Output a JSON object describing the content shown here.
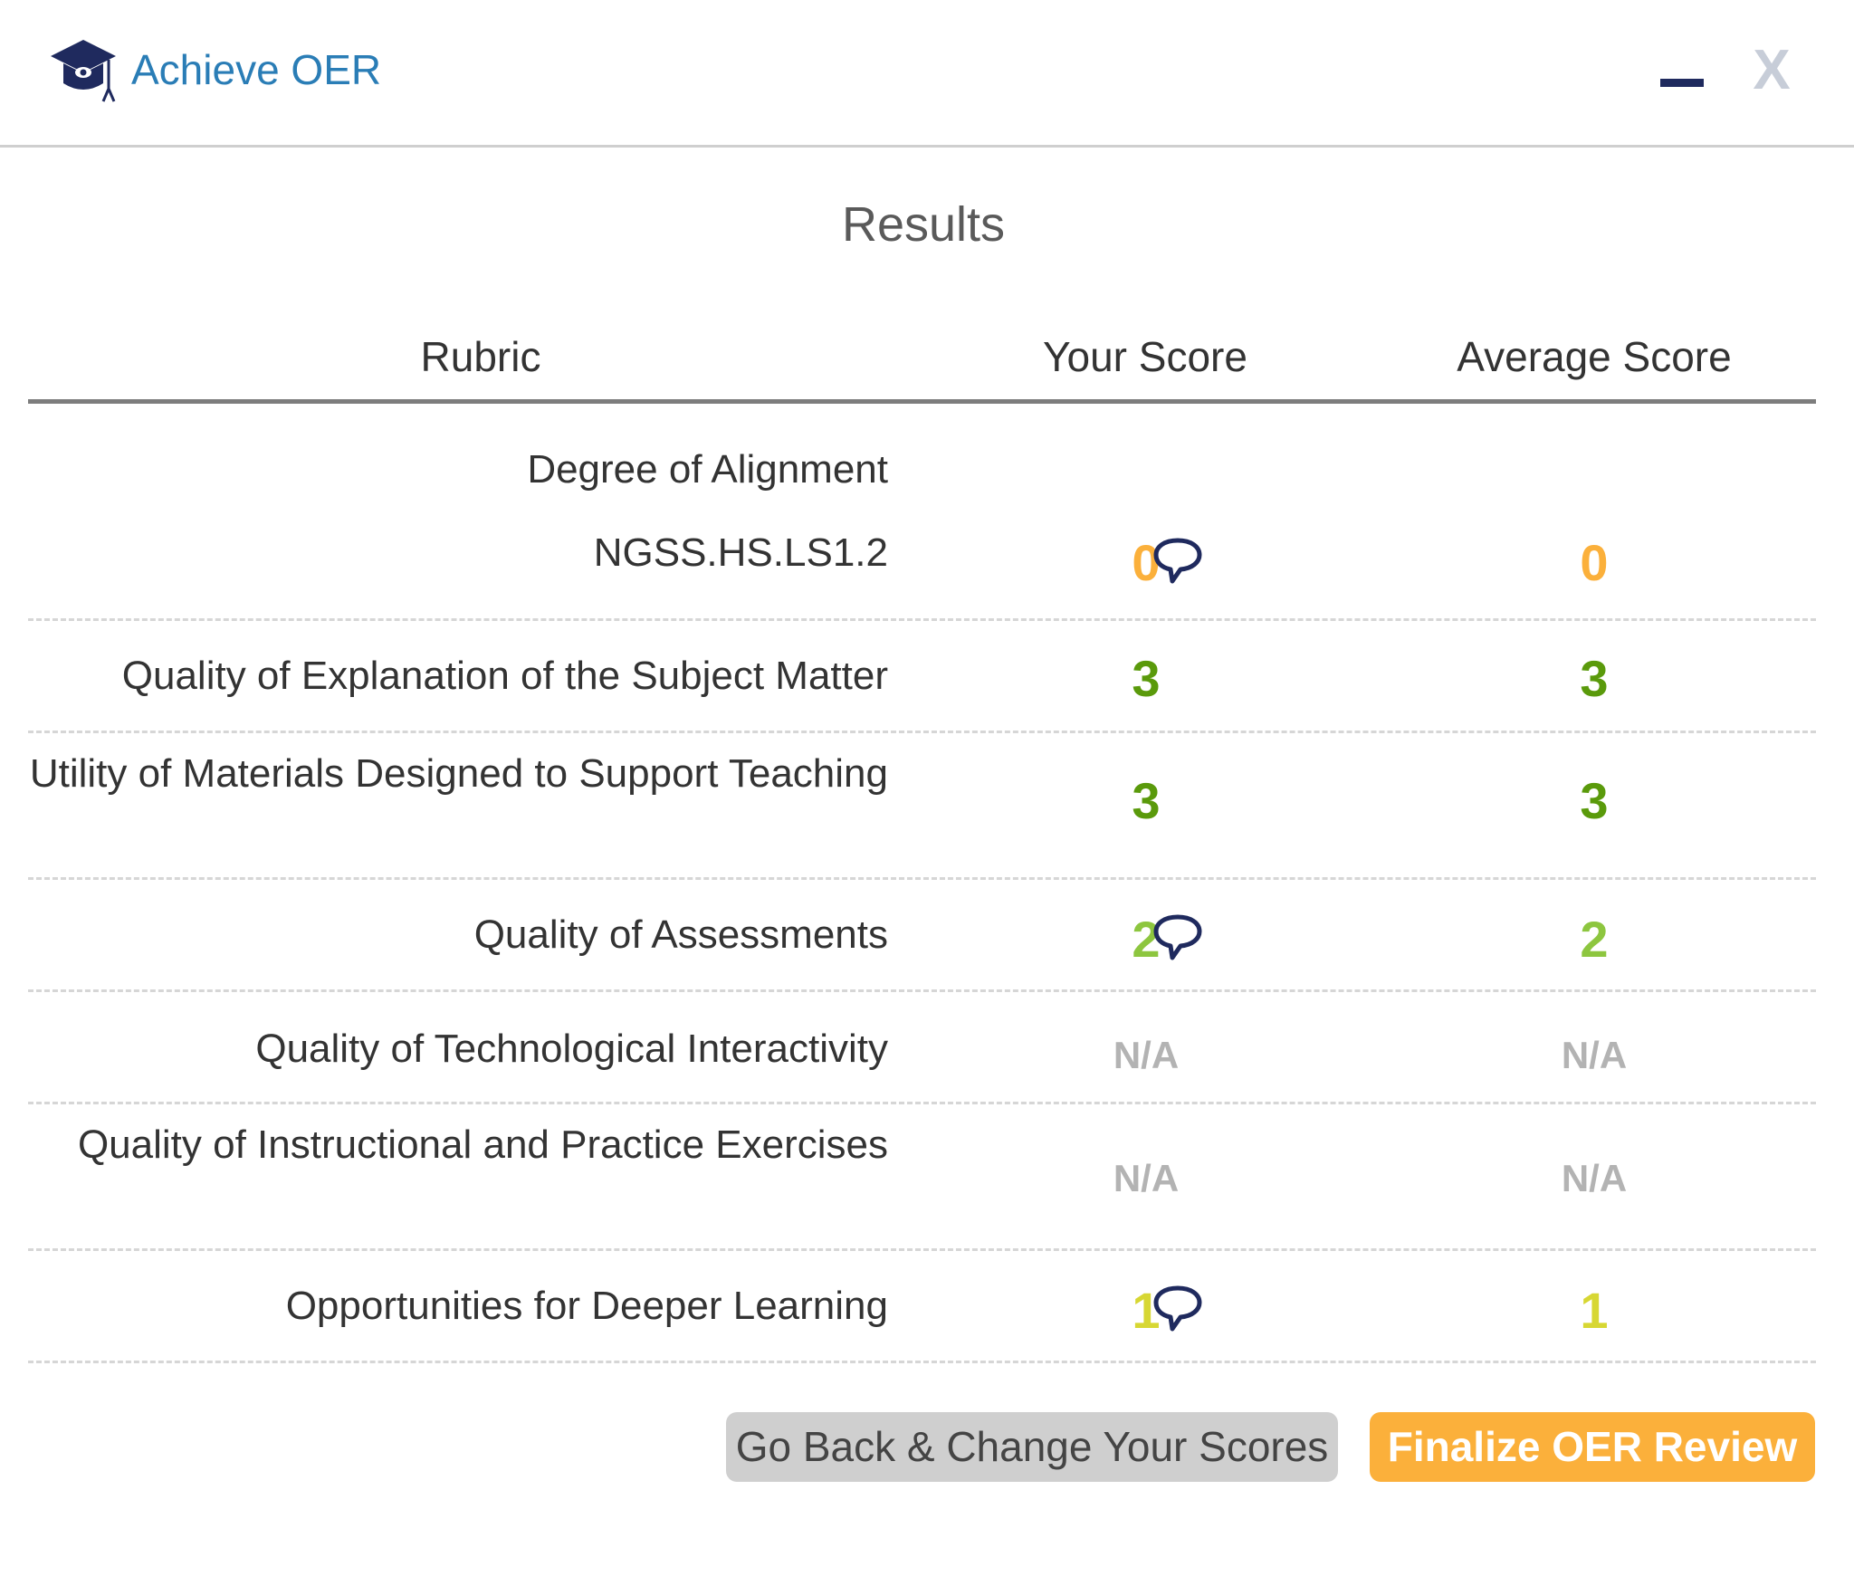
{
  "header": {
    "app_title": "Achieve OER",
    "logo_icon": "graduation-cap-icon",
    "minimize_icon": "minimize-icon",
    "close_label": "X"
  },
  "colors": {
    "brand_blue": "#2a7db6",
    "navy": "#1f2a5e",
    "score_0": "#fbb03b",
    "score_1": "#d7d733",
    "score_2": "#8dc63f",
    "score_3": "#5a9a0b",
    "na": "#b3b3b3",
    "finalize": "#fbb03b",
    "back": "#cfcfcf"
  },
  "main": {
    "title": "Results"
  },
  "table": {
    "headers": {
      "rubric": "Rubric",
      "your_score": "Your Score",
      "average_score": "Average Score"
    },
    "rows": [
      {
        "rubric": "Degree of Alignment",
        "your": "",
        "avg": "",
        "comment": false
      },
      {
        "rubric": "NGSS.HS.LS1.2",
        "your": "0",
        "avg": "0",
        "comment": true
      },
      {
        "rubric": "Quality of Explanation of the Subject Matter",
        "your": "3",
        "avg": "3",
        "comment": false
      },
      {
        "rubric": "Utility of Materials Designed to Support Teaching",
        "your": "3",
        "avg": "3",
        "comment": false
      },
      {
        "rubric": "Quality of Assessments",
        "your": "2",
        "avg": "2",
        "comment": true
      },
      {
        "rubric": "Quality of Technological Interactivity",
        "your": "N/A",
        "avg": "N/A",
        "comment": false
      },
      {
        "rubric": "Quality of Instructional and Practice Exercises",
        "your": "N/A",
        "avg": "N/A",
        "comment": false
      },
      {
        "rubric": "Opportunities for Deeper Learning",
        "your": "1",
        "avg": "1",
        "comment": true
      }
    ]
  },
  "actions": {
    "back_label": "Go Back & Change Your Scores",
    "finalize_label": "Finalize OER Review"
  }
}
